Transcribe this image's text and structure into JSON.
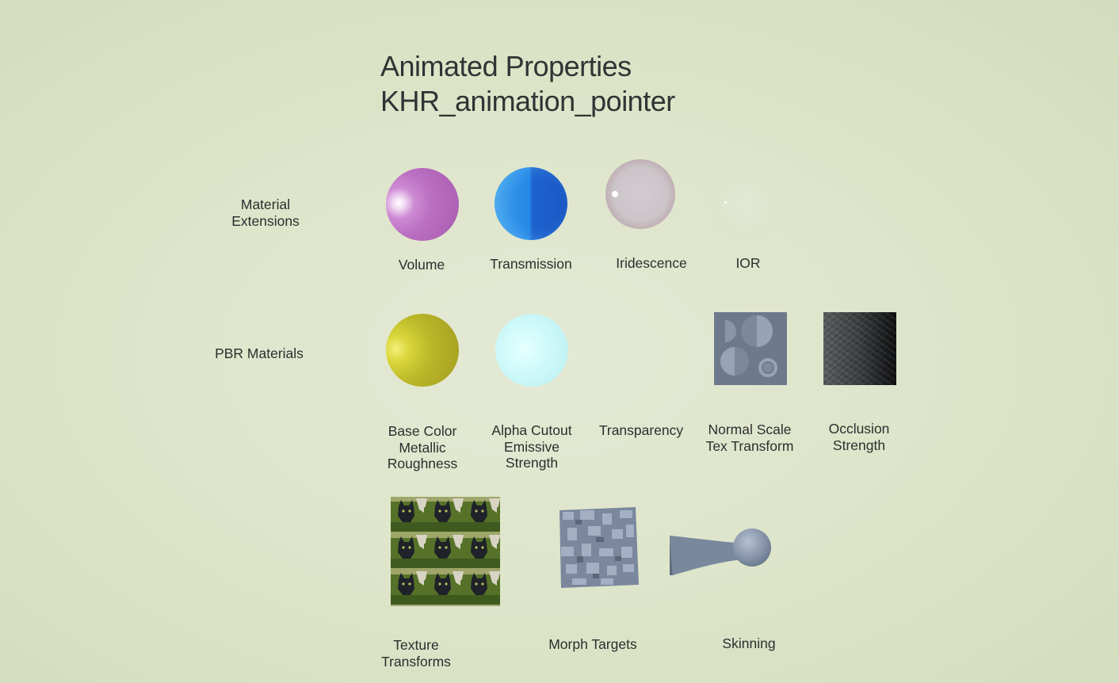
{
  "title": {
    "line1": "Animated Properties",
    "line2": "KHR_animation_pointer"
  },
  "rows": {
    "material_extensions": {
      "line1": "Material",
      "line2": "Extensions"
    },
    "pbr_materials": {
      "label": "PBR Materials"
    }
  },
  "items": {
    "volume": {
      "label": "Volume",
      "color": "#b86cc0"
    },
    "transmission": {
      "label": "Transmission",
      "color": "#1e6fd4"
    },
    "iridescence": {
      "label": "Iridescence",
      "color": "#cfc8c8"
    },
    "ior": {
      "label": "IOR"
    },
    "base_color": {
      "line1": "Base Color",
      "line2": "Metallic",
      "line3": "Roughness",
      "color": "#c8c42a"
    },
    "alpha_cutout": {
      "line1": "Alpha Cutout",
      "line2": "Emissive",
      "line3": "Strength",
      "color": "#c8f6f6"
    },
    "transparency": {
      "label": "Transparency"
    },
    "normal_scale": {
      "line1": "Normal Scale",
      "line2": "Tex Transform",
      "color": "#6f7b8c"
    },
    "occlusion": {
      "line1": "Occlusion",
      "line2": "Strength"
    },
    "texture_transforms": {
      "line1": "Texture",
      "line2": "Transforms"
    },
    "morph_targets": {
      "label": "Morph Targets"
    },
    "skinning": {
      "label": "Skinning"
    }
  }
}
